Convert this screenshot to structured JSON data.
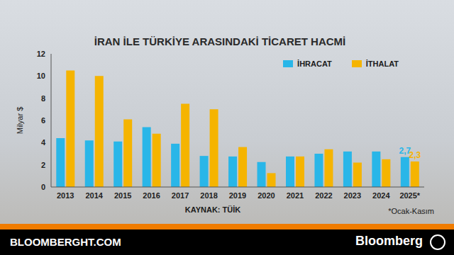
{
  "chart_data": {
    "type": "bar",
    "title": "İRAN İLE TÜRKİYE ARASINDAKİ TİCARET HACMİ",
    "y_label": "Milyar $",
    "source": "KAYNAK: TÜİK",
    "note": "*Ocak-Kasım",
    "categories": [
      "2013",
      "2014",
      "2015",
      "2016",
      "2017",
      "2018",
      "2019",
      "2020",
      "2021",
      "2022",
      "2023",
      "2024",
      "2025*"
    ],
    "series": [
      {
        "name": "İHRACAT",
        "color": "#29b6e8",
        "values": [
          4.4,
          4.2,
          4.1,
          5.4,
          3.9,
          2.8,
          2.75,
          2.25,
          2.75,
          3.0,
          3.2,
          3.2,
          2.7
        ],
        "value_labels": [
          null,
          null,
          null,
          null,
          null,
          null,
          null,
          null,
          null,
          null,
          null,
          null,
          "2,7"
        ]
      },
      {
        "name": "İTHALAT",
        "color": "#f5b400",
        "values": [
          10.5,
          10.0,
          6.1,
          4.8,
          7.5,
          7.0,
          3.6,
          1.25,
          2.75,
          3.4,
          2.2,
          2.5,
          2.3
        ],
        "value_labels": [
          null,
          null,
          null,
          null,
          null,
          null,
          null,
          null,
          null,
          null,
          null,
          null,
          "2,3"
        ]
      }
    ],
    "ylim": [
      0,
      12
    ],
    "yticks": [
      0,
      2,
      4,
      6,
      8,
      10,
      12
    ],
    "grid": false,
    "legend": "upper right"
  },
  "footer": {
    "site": "BLOOMBERGHT.COM",
    "brand": "Bloomberg"
  }
}
